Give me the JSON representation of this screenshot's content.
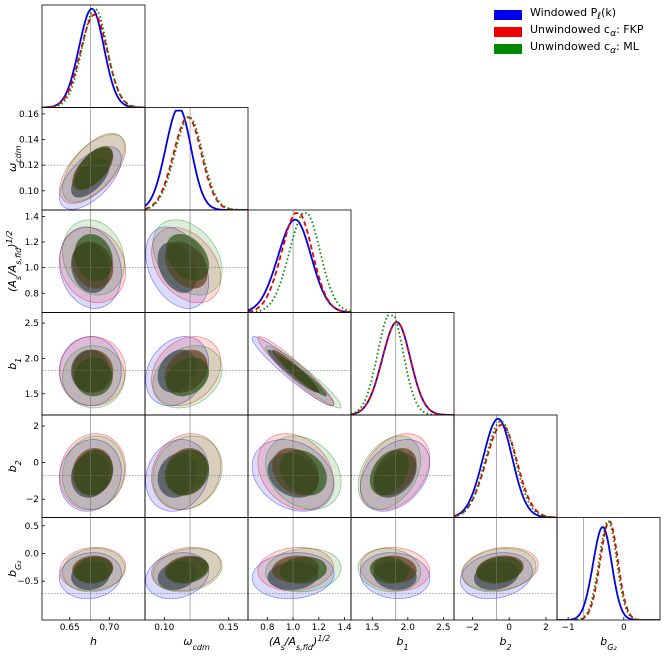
{
  "chart_data": {
    "type": "corner",
    "title": "",
    "parameters": [
      {
        "id": "h",
        "label": "h",
        "fiducial": 0.676,
        "lim": [
          0.615,
          0.745
        ],
        "ticks": [
          0.65,
          0.7
        ],
        "tick_labels": [
          "0.65",
          "0.70"
        ]
      },
      {
        "id": "omega_cdm",
        "label": "ω_cdm",
        "fiducial": 0.12,
        "lim": [
          0.085,
          0.165
        ],
        "ticks": [
          0.1,
          0.12,
          0.14,
          0.16
        ],
        "tick_labels": [
          "0.10",
          "0.12",
          "0.14",
          "0.16"
        ],
        "bottom_ticks": [
          0.1,
          0.15
        ],
        "bottom_tick_labels": [
          "0.10",
          "0.15"
        ]
      },
      {
        "id": "As",
        "label": "(A_s/A_s,fid)^1/2",
        "fiducial": 1.0,
        "lim": [
          0.65,
          1.45
        ],
        "ticks": [
          0.8,
          1.0,
          1.2,
          1.4
        ],
        "tick_labels": [
          "0.8",
          "1.0",
          "1.2",
          "1.4"
        ],
        "bottom_ticks": [
          0.8,
          1.0,
          1.2,
          1.4
        ],
        "bottom_tick_labels": [
          "0.8",
          "1.0",
          "1.2",
          "1.4"
        ]
      },
      {
        "id": "b1",
        "label": "b_1",
        "fiducial": 1.83,
        "lim": [
          1.2,
          2.65
        ],
        "ticks": [
          1.5,
          2.0,
          2.5
        ],
        "tick_labels": [
          "1.5",
          "2.0",
          "2.5"
        ],
        "bottom_ticks": [
          1.5,
          2.0,
          2.5
        ],
        "bottom_tick_labels": [
          "1.5",
          "2.0",
          "2.5"
        ]
      },
      {
        "id": "b2",
        "label": "b_2",
        "fiducial": -0.7,
        "lim": [
          -3.0,
          2.6
        ],
        "ticks": [
          -2,
          0,
          2
        ],
        "tick_labels": [
          "−2",
          "0",
          "2"
        ],
        "bottom_ticks": [
          -2,
          0,
          2
        ],
        "bottom_tick_labels": [
          "−2",
          "0",
          "2"
        ]
      },
      {
        "id": "bG2",
        "label": "b_G2",
        "fiducial": -0.72,
        "lim": [
          -1.2,
          0.65
        ],
        "ticks": [
          -0.5,
          0.0,
          0.5
        ],
        "tick_labels": [
          "−0.5",
          "0.0",
          "0.5"
        ],
        "bottom_ticks": [
          -1,
          0
        ],
        "bottom_tick_labels": [
          "−1",
          "0"
        ]
      }
    ],
    "y_axis_params": [
      "omega_cdm",
      "As",
      "b1",
      "b2",
      "bG2"
    ],
    "series": [
      {
        "name": "Windowed P_ℓ(k)",
        "legend_text": "Windowed P",
        "legend_sub": "ℓ",
        "legend_tail": "(k)",
        "color": "#0000ee",
        "line_style": "solid",
        "means": [
          0.676,
          0.11,
          1.0,
          1.82,
          -0.7,
          -0.4
        ],
        "sigmas": [
          0.016,
          0.01,
          0.13,
          0.2,
          0.8,
          0.17
        ]
      },
      {
        "name": "Unwindowed c_α: FKP",
        "legend_text": "Unwindowed c",
        "legend_sub": "α",
        "legend_tail": ": FKP",
        "color": "#ee0000",
        "line_style": "dashed",
        "means": [
          0.679,
          0.117,
          1.02,
          1.82,
          -0.5,
          -0.28
        ],
        "sigmas": [
          0.017,
          0.011,
          0.12,
          0.2,
          0.85,
          0.16
        ]
      },
      {
        "name": "Unwindowed c_α: ML",
        "legend_text": "Unwindowed c",
        "legend_sub": "α",
        "legend_tail": ": ML",
        "color": "#008800",
        "line_style": "dotted",
        "means": [
          0.68,
          0.118,
          1.08,
          1.74,
          -0.55,
          -0.3
        ],
        "sigmas": [
          0.016,
          0.011,
          0.12,
          0.18,
          0.82,
          0.16
        ]
      }
    ],
    "correlations": {
      "omega_cdm|h": 0.6,
      "As|h": -0.15,
      "As|omega_cdm": -0.35,
      "b1|h": 0.0,
      "b1|omega_cdm": 0.25,
      "b1|As": -0.95,
      "b2|h": 0.1,
      "b2|omega_cdm": 0.15,
      "b2|As": -0.25,
      "b2|b1": 0.35,
      "bG2|h": 0.1,
      "bG2|omega_cdm": 0.2,
      "bG2|As": 0.1,
      "bG2|b1": -0.1,
      "bG2|b2": 0.2
    },
    "contour_levels": [
      "68%",
      "95%"
    ]
  },
  "colors": {
    "fill_inner": "#2a3a12",
    "fiducial_line": "#777777"
  }
}
